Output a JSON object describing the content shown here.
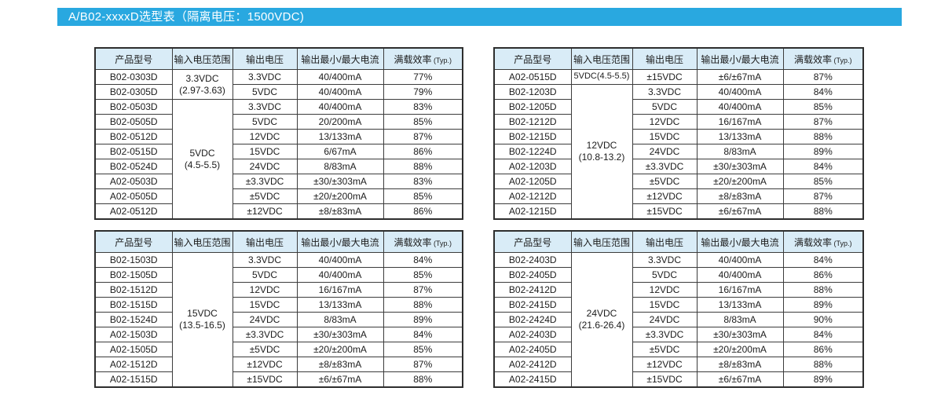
{
  "page": {
    "title": "A/B02-xxxxD选型表（隔离电压：1500VDC)",
    "title_bar_color": "#29a8e0",
    "table_header_bg": "#d9ecf7"
  },
  "table_columns": [
    "产品型号",
    "输入电压范围",
    "输出电压",
    "输出最小/最大电流",
    "满载效率"
  ],
  "efficiency_note": "(Typ.)",
  "tables": [
    {
      "position": "top-left",
      "input_groups": [
        {
          "lines": [
            "3.3VDC",
            "(2.97-3.63)"
          ],
          "rowspan": 2
        },
        {
          "lines": [
            "5VDC",
            "(4.5-5.5)"
          ],
          "rowspan": 8
        }
      ],
      "rows": [
        [
          "B02-0303D",
          "3.3VDC",
          "40/400mA",
          "77%"
        ],
        [
          "B02-0305D",
          "5VDC",
          "40/400mA",
          "79%"
        ],
        [
          "B02-0503D",
          "3.3VDC",
          "40/400mA",
          "83%"
        ],
        [
          "B02-0505D",
          "5VDC",
          "20/200mA",
          "85%"
        ],
        [
          "B02-0512D",
          "12VDC",
          "13/133mA",
          "87%"
        ],
        [
          "B02-0515D",
          "15VDC",
          "6/67mA",
          "86%"
        ],
        [
          "B02-0524D",
          "24VDC",
          "8/83mA",
          "88%"
        ],
        [
          "A02-0503D",
          "±3.3VDC",
          "±30/±303mA",
          "83%"
        ],
        [
          "A02-0505D",
          "±5VDC",
          "±20/±200mA",
          "85%"
        ],
        [
          "A02-0512D",
          "±12VDC",
          "±8/±83mA",
          "86%"
        ]
      ]
    },
    {
      "position": "top-right",
      "input_groups": [
        {
          "lines": [
            "5VDC(4.5-5.5)"
          ],
          "rowspan": 1,
          "small": true
        },
        {
          "lines": [
            "12VDC",
            "(10.8-13.2)"
          ],
          "rowspan": 9
        }
      ],
      "rows": [
        [
          "A02-0515D",
          "±15VDC",
          "±6/±67mA",
          "87%"
        ],
        [
          "B02-1203D",
          "3.3VDC",
          "40/400mA",
          "84%"
        ],
        [
          "B02-1205D",
          "5VDC",
          "40/400mA",
          "85%"
        ],
        [
          "B02-1212D",
          "12VDC",
          "16/167mA",
          "87%"
        ],
        [
          "B02-1215D",
          "15VDC",
          "13/133mA",
          "88%"
        ],
        [
          "B02-1224D",
          "24VDC",
          "8/83mA",
          "89%"
        ],
        [
          "A02-1203D",
          "±3.3VDC",
          "±30/±303mA",
          "84%"
        ],
        [
          "A02-1205D",
          "±5VDC",
          "±20/±200mA",
          "85%"
        ],
        [
          "A02-1212D",
          "±12VDC",
          "±8/±83mA",
          "87%"
        ],
        [
          "A02-1215D",
          "±15VDC",
          "±6/±67mA",
          "88%"
        ]
      ]
    },
    {
      "position": "bottom-left",
      "input_groups": [
        {
          "lines": [
            "15VDC",
            "(13.5-16.5)"
          ],
          "rowspan": 9
        }
      ],
      "rows": [
        [
          "B02-1503D",
          "3.3VDC",
          "40/400mA",
          "84%"
        ],
        [
          "B02-1505D",
          "5VDC",
          "40/400mA",
          "85%"
        ],
        [
          "B02-1512D",
          "12VDC",
          "16/167mA",
          "87%"
        ],
        [
          "B02-1515D",
          "15VDC",
          "13/133mA",
          "88%"
        ],
        [
          "B02-1524D",
          "24VDC",
          "8/83mA",
          "89%"
        ],
        [
          "A02-1503D",
          "±3.3VDC",
          "±30/±303mA",
          "84%"
        ],
        [
          "A02-1505D",
          "±5VDC",
          "±20/±200mA",
          "85%"
        ],
        [
          "A02-1512D",
          "±12VDC",
          "±8/±83mA",
          "87%"
        ],
        [
          "A02-1515D",
          "±15VDC",
          "±6/±67mA",
          "88%"
        ]
      ]
    },
    {
      "position": "bottom-right",
      "input_groups": [
        {
          "lines": [
            "24VDC",
            "(21.6-26.4)"
          ],
          "rowspan": 9
        }
      ],
      "rows": [
        [
          "B02-2403D",
          "3.3VDC",
          "40/400mA",
          "84%"
        ],
        [
          "B02-2405D",
          "5VDC",
          "40/400mA",
          "86%"
        ],
        [
          "B02-2412D",
          "12VDC",
          "16/167mA",
          "88%"
        ],
        [
          "B02-2415D",
          "15VDC",
          "13/133mA",
          "89%"
        ],
        [
          "B02-2424D",
          "24VDC",
          "8/83mA",
          "90%"
        ],
        [
          "A02-2403D",
          "±3.3VDC",
          "±30/±303mA",
          "84%"
        ],
        [
          "A02-2405D",
          "±5VDC",
          "±20/±200mA",
          "86%"
        ],
        [
          "A02-2412D",
          "±12VDC",
          "±8/±83mA",
          "88%"
        ],
        [
          "A02-2415D",
          "±15VDC",
          "±6/±67mA",
          "89%"
        ]
      ]
    }
  ]
}
